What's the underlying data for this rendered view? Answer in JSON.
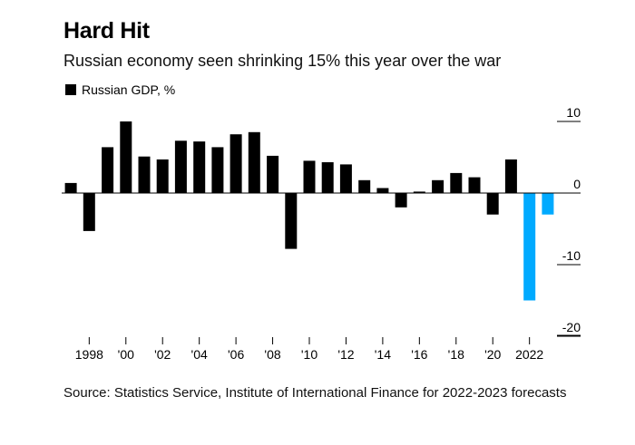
{
  "header": {
    "title": "Hard Hit",
    "subtitle": "Russian economy seen shrinking 15% this year over the war"
  },
  "colors": {
    "actual": "#000000",
    "forecast": "#00aaff"
  },
  "chart_data": {
    "type": "bar",
    "title": "Hard Hit",
    "subtitle": "Russian economy seen shrinking 15% this year over the war",
    "legend": [
      "Russian GDP, %"
    ],
    "legend_position": "top-left",
    "xlabel": "",
    "ylabel": "",
    "ylim": [
      -20,
      10
    ],
    "y_ticks": [
      10,
      0,
      -10,
      -20
    ],
    "grid": false,
    "categories": [
      "1997",
      "1998",
      "1999",
      "2000",
      "2001",
      "2002",
      "2003",
      "2004",
      "2005",
      "2006",
      "2007",
      "2008",
      "2009",
      "2010",
      "2011",
      "2012",
      "2013",
      "2014",
      "2015",
      "2016",
      "2017",
      "2018",
      "2019",
      "2020",
      "2021",
      "2022",
      "2023"
    ],
    "series": [
      {
        "name": "Russian GDP, %",
        "values": [
          1.4,
          -5.3,
          6.4,
          10.0,
          5.1,
          4.7,
          7.3,
          7.2,
          6.4,
          8.2,
          8.5,
          5.2,
          -7.8,
          4.5,
          4.3,
          4.0,
          1.8,
          0.7,
          -2.0,
          0.2,
          1.8,
          2.8,
          2.2,
          -3.0,
          4.7,
          -15.0,
          -3.0
        ],
        "forecast_from": "2022"
      }
    ],
    "x_tick_labels": [
      {
        "category": "1998",
        "label": "1998"
      },
      {
        "category": "2000",
        "label": "'00"
      },
      {
        "category": "2002",
        "label": "'02"
      },
      {
        "category": "2004",
        "label": "'04"
      },
      {
        "category": "2006",
        "label": "'06"
      },
      {
        "category": "2008",
        "label": "'08"
      },
      {
        "category": "2010",
        "label": "'10"
      },
      {
        "category": "2012",
        "label": "'12"
      },
      {
        "category": "2014",
        "label": "'14"
      },
      {
        "category": "2016",
        "label": "'16"
      },
      {
        "category": "2018",
        "label": "'18"
      },
      {
        "category": "2020",
        "label": "'20"
      },
      {
        "category": "2022",
        "label": "2022"
      }
    ]
  },
  "footer": {
    "source": "Source: Statistics Service, Institute of International Finance for 2022-2023 forecasts"
  }
}
